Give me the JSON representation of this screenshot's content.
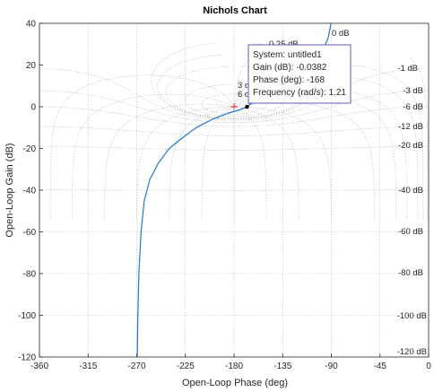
{
  "chart_data": {
    "type": "line",
    "title": "Nichols Chart",
    "xlabel": "Open-Loop Phase (deg)",
    "ylabel": "Open-Loop Gain (dB)",
    "xlim": [
      -360,
      0
    ],
    "ylim": [
      -120,
      40
    ],
    "xticks": [
      -360,
      -315,
      -270,
      -225,
      -180,
      -135,
      -90,
      -45,
      0
    ],
    "yticks": [
      -120,
      -100,
      -80,
      -60,
      -40,
      -20,
      0,
      20,
      40
    ],
    "grid": true,
    "series": [
      {
        "color": "#1f77d4",
        "x": [
          -269.5,
          -269,
          -268,
          -266,
          -263,
          -258,
          -250,
          -240,
          -228,
          -215,
          -200,
          -185,
          -175,
          -168,
          -160,
          -150,
          -140,
          -130,
          -120,
          -110,
          -103,
          -97,
          -93,
          -91,
          -90
        ],
        "y": [
          -120,
          -100,
          -80,
          -60,
          -45,
          -35,
          -27,
          -20,
          -15,
          -10,
          -6,
          -3,
          -1.5,
          -0.04,
          3,
          6,
          9,
          12,
          15,
          19,
          23,
          28,
          33,
          38,
          42
        ]
      }
    ],
    "grid_labels": [
      "0 dB",
      "0.25 dB",
      "-1 dB",
      "3 dB",
      "-3 dB",
      "6 dB",
      "-6 dB",
      "-12 dB",
      "-20 dB",
      "-40 dB",
      "-60 dB",
      "-80 dB",
      "-100 dB",
      "-120 dB"
    ],
    "critical_point": {
      "x": -180,
      "y": 0,
      "marker": "+",
      "color": "#e8382f"
    },
    "datatip": {
      "point": {
        "x": -168,
        "y": -0.0382
      },
      "lines": [
        "System: untitled1",
        "Gain (dB): -0.0382",
        "Phase (deg): -168",
        "Frequency (rad/s): 1.21"
      ]
    }
  }
}
